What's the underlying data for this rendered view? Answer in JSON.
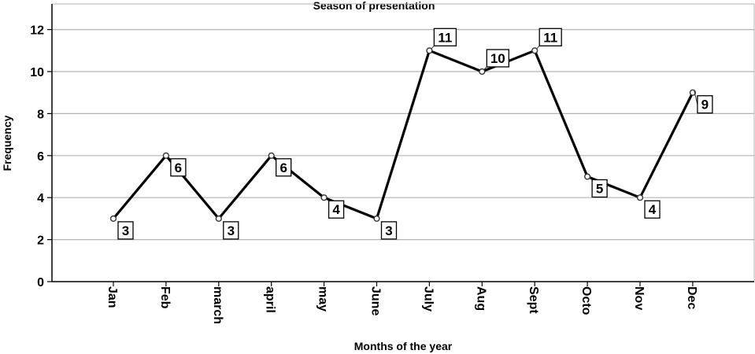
{
  "chart_data": {
    "type": "line",
    "title": "Season of presentation",
    "xlabel": "Months of the year",
    "ylabel": "Frequency",
    "categories": [
      "Jan",
      "Feb",
      "march",
      "april",
      "may",
      "June",
      "July",
      "Aug",
      "Sept",
      "Octo",
      "Nov",
      "Dec"
    ],
    "values": [
      3,
      6,
      3,
      6,
      4,
      3,
      11,
      10,
      11,
      5,
      4,
      9
    ],
    "ylim": [
      0,
      12
    ],
    "yticks": [
      0,
      2,
      4,
      6,
      8,
      10,
      12
    ],
    "grid": true,
    "data_labels": true,
    "line_color": "#000000",
    "grid_color": "#b3b3b3"
  }
}
